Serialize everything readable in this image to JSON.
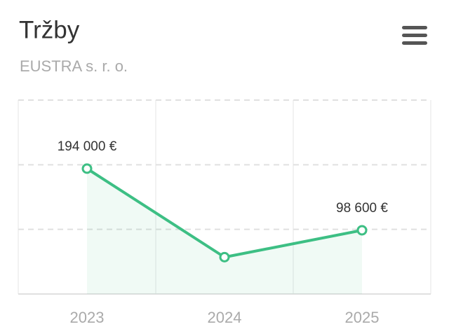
{
  "chart_data": {
    "type": "line",
    "title": "Tržby",
    "subtitle": "EUSTRA s. r. o.",
    "categories": [
      "2023",
      "2024",
      "2025"
    ],
    "values": [
      194000,
      57000,
      98600
    ],
    "value_labels": [
      "194 000 €",
      null,
      "98 600 €"
    ],
    "color": "#3dbf84",
    "ylim": [
      0,
      300000
    ],
    "yticks": [
      0,
      100000,
      200000,
      300000
    ],
    "grid": true
  }
}
